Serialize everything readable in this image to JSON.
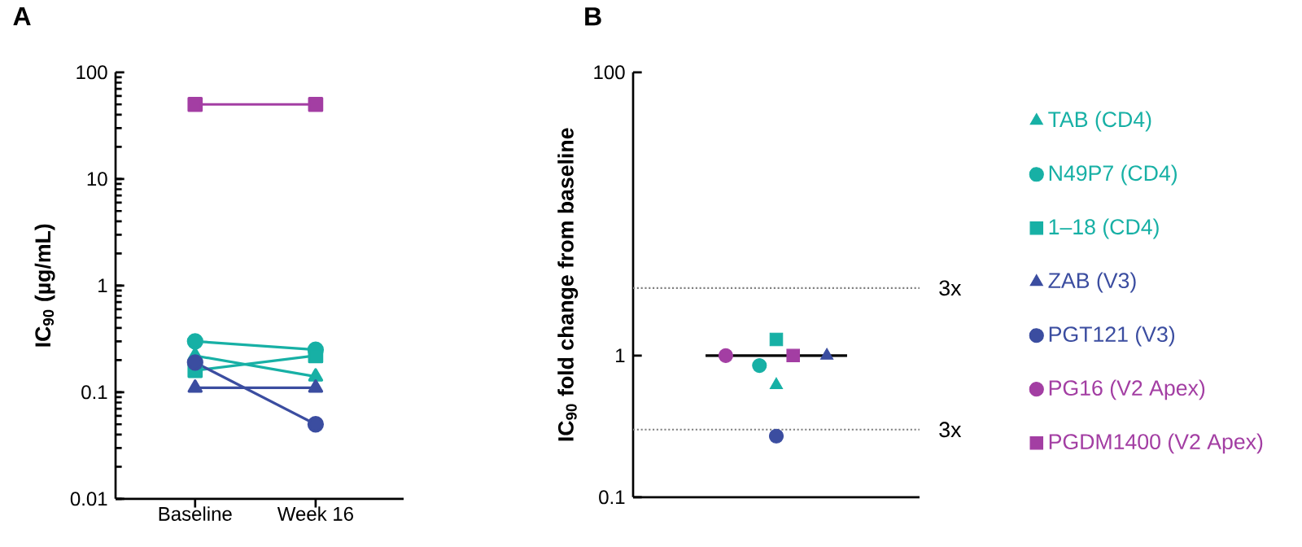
{
  "chart_data": [
    {
      "type": "line",
      "title": "A",
      "ylabel": "IC$_{90}$ (µg/mL)",
      "categories": [
        "Baseline",
        "Week 16"
      ],
      "log": "y",
      "ylim": [
        0.01,
        100
      ],
      "yticks": [
        0.01,
        0.1,
        1,
        10,
        100
      ],
      "grid": false,
      "legend": false,
      "line_style": "solid",
      "series": [
        {
          "color": "#17b0a5",
          "marker": "triangle",
          "values": [
            0.22,
            0.14
          ]
        },
        {
          "color": "#17b0a5",
          "marker": "circle",
          "values": [
            0.3,
            0.25
          ]
        },
        {
          "color": "#17b0a5",
          "marker": "square",
          "values": [
            0.16,
            0.22
          ]
        },
        {
          "color": "#3b4da0",
          "marker": "triangle",
          "values": [
            0.11,
            0.11
          ]
        },
        {
          "color": "#3b4da0",
          "marker": "circle",
          "values": [
            0.19,
            0.05
          ]
        },
        {
          "color": "#a33ea3",
          "marker": "square",
          "values": [
            50,
            50
          ]
        }
      ]
    },
    {
      "type": "scatter",
      "title": "B",
      "ylabel": "IC$_{90}$ fold change from baseline",
      "categories": [
        null,
        null,
        null,
        null,
        null,
        null,
        null,
        null,
        null,
        null,
        null,
        null,
        null,
        null,
        null,
        null,
        null
      ],
      "log": "y",
      "ylim": [
        0.1,
        100
      ],
      "yticks": [
        0.1,
        1,
        100
      ],
      "grid": false,
      "legend": "right",
      "ref_lines": [
        {
          "axis": "y",
          "value": 3,
          "label": "3x",
          "color": "#808080",
          "line_style": "dotted"
        },
        {
          "axis": "y",
          "value": 0.3,
          "label": "3x",
          "color": "#808080",
          "line_style": "dotted"
        },
        {
          "axis": "y",
          "value": 1,
          "color": "#000000",
          "line_style": "solid"
        }
      ],
      "series": [
        {
          "name": "TAB (CD4)",
          "color": "#17b0a5",
          "marker": "triangle",
          "values": [
            null,
            null,
            null,
            null,
            null,
            null,
            null,
            null,
            0.62,
            null,
            null,
            null,
            null,
            null,
            null,
            null,
            null
          ]
        },
        {
          "name": "N49P7 (CD4)",
          "color": "#17b0a5",
          "marker": "circle",
          "values": [
            null,
            null,
            null,
            null,
            null,
            null,
            null,
            0.85,
            null,
            null,
            null,
            null,
            null,
            null,
            null,
            null,
            null
          ]
        },
        {
          "name": "1–18 (CD4)",
          "color": "#17b0a5",
          "marker": "square",
          "values": [
            null,
            null,
            null,
            null,
            null,
            null,
            null,
            null,
            1.3,
            null,
            null,
            null,
            null,
            null,
            null,
            null,
            null
          ]
        },
        {
          "name": "ZAB (V3)",
          "color": "#3b4da0",
          "marker": "triangle",
          "values": [
            null,
            null,
            null,
            null,
            null,
            null,
            null,
            null,
            null,
            null,
            null,
            1.0,
            null,
            null,
            null,
            null,
            null
          ]
        },
        {
          "name": "PGT121 (V3)",
          "color": "#3b4da0",
          "marker": "circle",
          "values": [
            null,
            null,
            null,
            null,
            null,
            null,
            null,
            null,
            0.27,
            null,
            null,
            null,
            null,
            null,
            null,
            null,
            null
          ]
        },
        {
          "name": "PG16 (V2 Apex)",
          "color": "#a33ea3",
          "marker": "circle",
          "values": [
            null,
            null,
            null,
            null,
            null,
            1.0,
            null,
            null,
            null,
            null,
            null,
            null,
            null,
            null,
            null,
            null,
            null
          ]
        },
        {
          "name": "PGDM1400 (V2 Apex)",
          "color": "#a33ea3",
          "marker": "square",
          "values": [
            null,
            null,
            null,
            null,
            null,
            null,
            null,
            null,
            null,
            1.0,
            null,
            null,
            null,
            null,
            null,
            null,
            null
          ]
        }
      ]
    }
  ]
}
